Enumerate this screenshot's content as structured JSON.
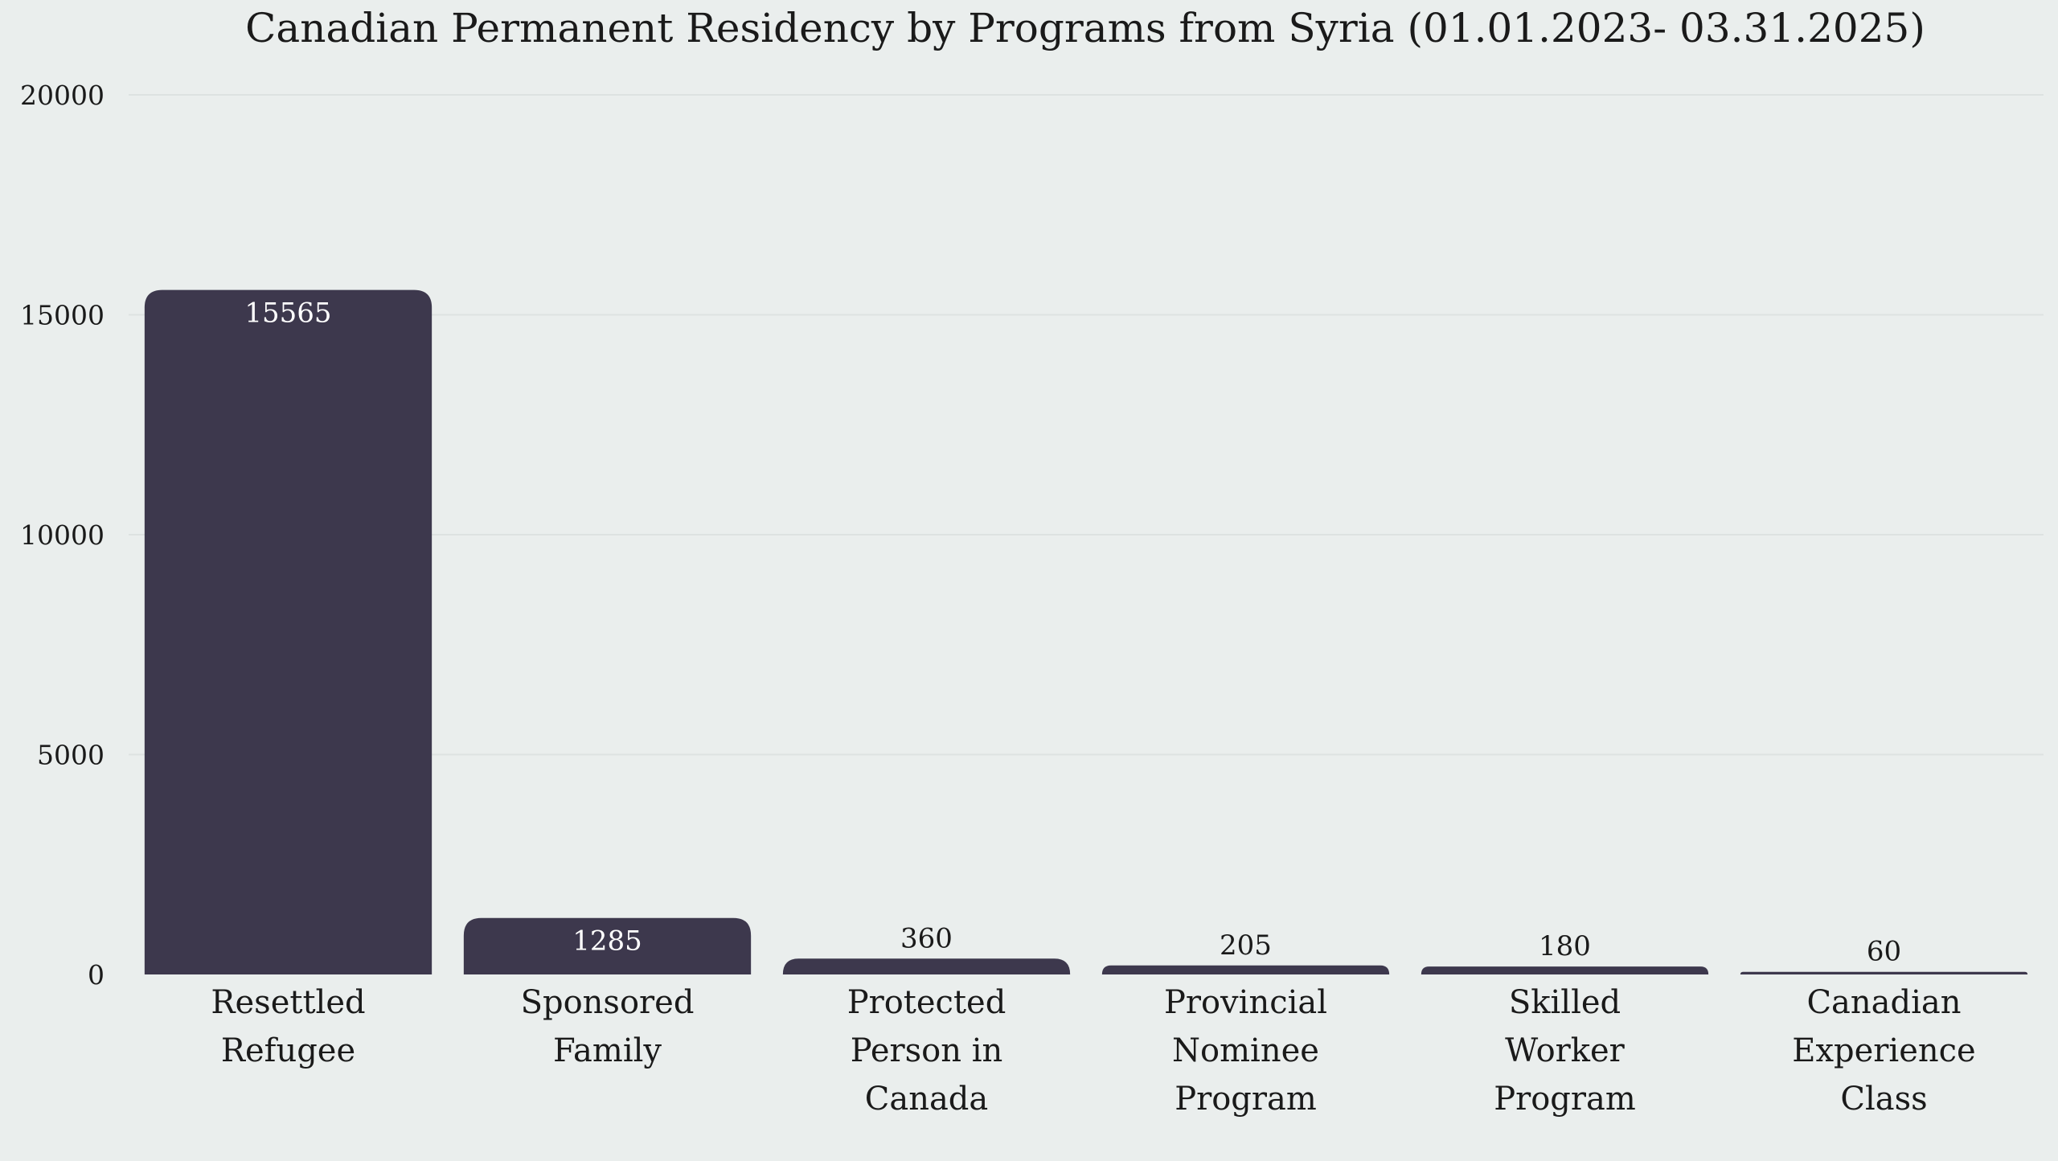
{
  "chart_data": {
    "type": "bar",
    "title": "Canadian Permanent Residency by Programs from Syria (01.01.2023- 03.31.2025)",
    "xlabel": "",
    "ylabel": "",
    "categories": [
      [
        "Resettled",
        "Refugee"
      ],
      [
        "Sponsored",
        "Family"
      ],
      [
        "Protected",
        "Person in",
        "Canada"
      ],
      [
        "Provincial",
        "Nominee",
        "Program"
      ],
      [
        "Skilled",
        "Worker",
        "Program"
      ],
      [
        "Canadian",
        "Experience",
        "Class"
      ]
    ],
    "values": [
      15565,
      1285,
      360,
      205,
      180,
      60
    ],
    "data_labels": [
      "15565",
      "1285",
      "360",
      "205",
      "180",
      "60"
    ],
    "yticks": [
      0,
      5000,
      10000,
      15000,
      20000
    ],
    "ytick_labels": [
      "0",
      "5000",
      "10000",
      "15000",
      "20000"
    ],
    "ylim": [
      0,
      20000
    ],
    "grid": true,
    "legend": "none",
    "colors": {
      "bar": "#3d384d",
      "background": "#eaeeed",
      "grid": "#dde2e1",
      "label_inside": "#ffffff",
      "label_outside": "#1a1a1a"
    }
  }
}
